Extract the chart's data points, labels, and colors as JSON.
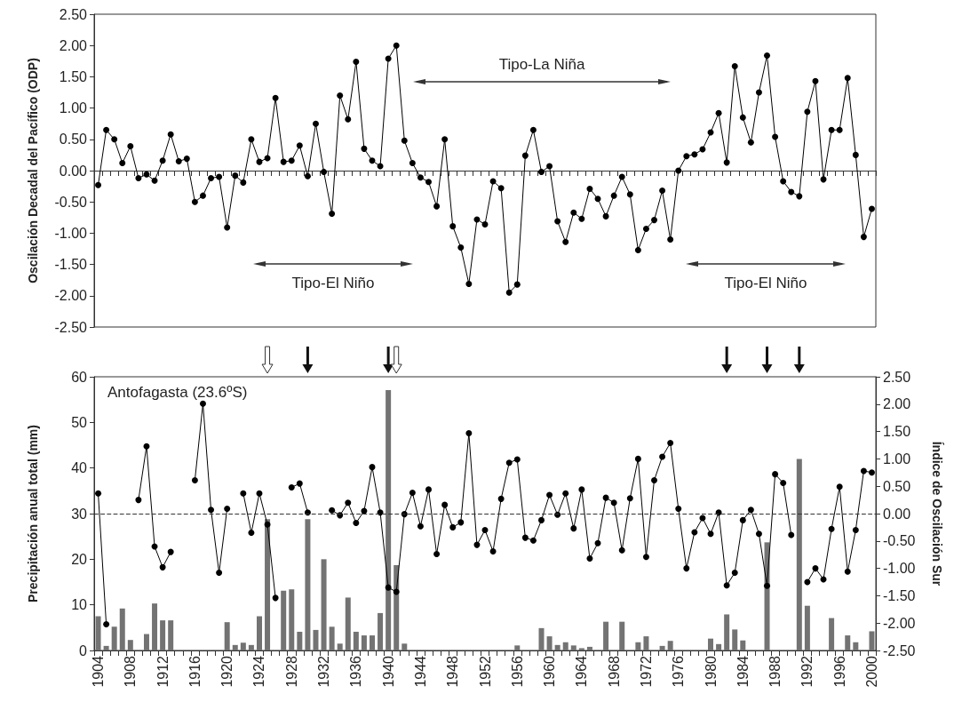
{
  "chart_data": [
    {
      "type": "line",
      "ylabel": "Oscilación Decadal del Pacífico (ODP)",
      "tick_labels": "y",
      "marker": "circle",
      "line_style": "solid",
      "categories": [
        null,
        null,
        null,
        null,
        null,
        null,
        null,
        null,
        null,
        null,
        null,
        null,
        null,
        null,
        null,
        null,
        null,
        null,
        null,
        null,
        null,
        null,
        null,
        null,
        null,
        null,
        null,
        null,
        null,
        null,
        null,
        null,
        null,
        null,
        null,
        null,
        null,
        null,
        null,
        null,
        null,
        null,
        null,
        null,
        null,
        null,
        null,
        null,
        null,
        null,
        null,
        null,
        null,
        null,
        null,
        null,
        null,
        null,
        null,
        null,
        null,
        null,
        null,
        null,
        null,
        null,
        null,
        null,
        null,
        null,
        null,
        null,
        null,
        null,
        null,
        null,
        null,
        null,
        null,
        null,
        null,
        null,
        null,
        null,
        null,
        null,
        null,
        null,
        null,
        null,
        null,
        null,
        null,
        null,
        null,
        null,
        null
      ],
      "ylim": [
        -2.5,
        2.5
      ],
      "yticks": [
        {
          "value": -2.5,
          "label": "-2.50"
        },
        {
          "value": -2,
          "label": "-2.00"
        },
        {
          "value": -1.5,
          "label": "-1.50"
        },
        {
          "value": -1,
          "label": "-1.00"
        },
        {
          "value": -0.5,
          "label": "-0.50"
        },
        {
          "value": 0,
          "label": "0.00"
        },
        {
          "value": 0.5,
          "label": "0.50"
        },
        {
          "value": 1,
          "label": "1.00"
        },
        {
          "value": 1.5,
          "label": "1.50"
        },
        {
          "value": 2,
          "label": "2.00"
        },
        {
          "value": 2.5,
          "label": "2.50"
        }
      ],
      "annotations": [
        "Tipo-La Niña",
        "Tipo-El Niño",
        "Tipo-El Niño"
      ],
      "series": [
        {
          "color": "#000000",
          "values": [
            -0.23,
            0.65,
            0.5,
            0.12,
            0.39,
            -0.12,
            -0.06,
            -0.16,
            0.16,
            0.58,
            0.15,
            0.19,
            -0.5,
            -0.4,
            -0.12,
            -0.1,
            -0.91,
            -0.08,
            -0.19,
            0.5,
            0.14,
            0.2,
            1.16,
            0.14,
            0.16,
            0.4,
            -0.09,
            0.75,
            -0.02,
            -0.69,
            1.2,
            0.82,
            1.74,
            0.35,
            0.16,
            0.07,
            1.79,
            2.0,
            0.48,
            0.12,
            -0.11,
            -0.18,
            -0.57,
            0.5,
            -0.89,
            -1.23,
            -1.81,
            -0.78,
            -0.86,
            -0.17,
            -0.28,
            -1.95,
            -1.82,
            0.24,
            0.65,
            -0.02,
            0.07,
            -0.81,
            -1.14,
            -0.67,
            -0.77,
            -0.29,
            -0.45,
            -0.73,
            -0.4,
            -0.1,
            -0.38,
            -1.27,
            -0.93,
            -0.79,
            -0.32,
            -1.1,
            0.0,
            0.23,
            0.26,
            0.34,
            0.61,
            0.92,
            0.13,
            1.67,
            0.85,
            0.45,
            1.25,
            1.84,
            0.54,
            -0.17,
            -0.34,
            -0.41,
            0.94,
            1.43,
            -0.14,
            0.65,
            0.65,
            1.48,
            0.25,
            -1.06,
            -0.61
          ]
        }
      ]
    },
    {
      "type": "bar",
      "title": "Antofagasta (23.6ºS)",
      "ylabel": "Precipitación anual total (mm)",
      "y2label": "Índice de Oscilación Sur",
      "marker": "circle",
      "line_style": "solid",
      "categories": [
        "1904",
        null,
        null,
        null,
        "1908",
        null,
        null,
        null,
        "1912",
        null,
        null,
        null,
        "1916",
        null,
        null,
        null,
        "1920",
        null,
        null,
        null,
        "1924",
        null,
        null,
        null,
        "1928",
        null,
        null,
        null,
        "1932",
        null,
        null,
        null,
        "1936",
        null,
        null,
        null,
        "1940",
        null,
        null,
        null,
        "1944",
        null,
        null,
        null,
        "1948",
        null,
        null,
        null,
        "1952",
        null,
        null,
        null,
        "1956",
        null,
        null,
        null,
        "1960",
        null,
        null,
        null,
        "1964",
        null,
        null,
        null,
        "1968",
        null,
        null,
        null,
        "1972",
        null,
        null,
        null,
        "1976",
        null,
        null,
        null,
        "1980",
        null,
        null,
        null,
        "1984",
        null,
        null,
        null,
        "1988",
        null,
        null,
        null,
        "1992",
        null,
        null,
        null,
        "1996",
        null,
        null,
        null,
        "2000"
      ],
      "ylim": [
        0,
        60
      ],
      "yticks": [
        0,
        10,
        20,
        30,
        40,
        50,
        60
      ],
      "y2lim": [
        -2.5,
        2.5
      ],
      "y2ticks": [
        {
          "value": -2.5,
          "label": "-2.50"
        },
        {
          "value": -2,
          "label": "-2.00"
        },
        {
          "value": -1.5,
          "label": "-1.50"
        },
        {
          "value": -1,
          "label": "-1.00"
        },
        {
          "value": -0.5,
          "label": "-0.50"
        },
        {
          "value": 0,
          "label": "0.00"
        },
        {
          "value": 0.5,
          "label": "0.50"
        },
        {
          "value": 1,
          "label": "1.00"
        },
        {
          "value": 1.5,
          "label": "1.50"
        },
        {
          "value": 2,
          "label": "2.00"
        },
        {
          "value": 2.5,
          "label": "2.50"
        }
      ],
      "ref_lines": [
        {
          "axis": "y2",
          "value": 0,
          "line_style": "dashed",
          "color": "#333333"
        }
      ],
      "series": [
        {
          "color": "#737373",
          "values": [
            7.5,
            1.0,
            5.2,
            9.2,
            2.3,
            0,
            3.6,
            10.3,
            6.6,
            6.6,
            0,
            0,
            0,
            0,
            0,
            0,
            6.2,
            1.2,
            1.7,
            1.2,
            7.5,
            28.8,
            0,
            13.1,
            13.4,
            4.1,
            28.8,
            4.5,
            20.0,
            5.2,
            1.5,
            11.6,
            4.1,
            3.3,
            3.3,
            8.2,
            57.1,
            18.7,
            1.5,
            0,
            0,
            0,
            0,
            0,
            0,
            0,
            0,
            0,
            0,
            0,
            0,
            0,
            1.1,
            0,
            0,
            4.9,
            3.1,
            1.2,
            1.8,
            1.1,
            0.5,
            0.8,
            0,
            6.3,
            0,
            6.3,
            0,
            1.8,
            3.1,
            0,
            1.0,
            2.1,
            0,
            0,
            0,
            0,
            2.6,
            1.4,
            7.9,
            4.6,
            2.2,
            0,
            0,
            23.7,
            0,
            0,
            0,
            42.0,
            9.8,
            0,
            0,
            7.1,
            0,
            3.3,
            1.8,
            0,
            4.2
          ]
        },
        {
          "type": "line",
          "axis": "y2",
          "color": "#000000",
          "values": [
            0.37,
            -2.02,
            null,
            null,
            null,
            0.25,
            1.23,
            -0.6,
            -0.98,
            -0.7,
            null,
            null,
            0.61,
            2.01,
            0.07,
            -1.08,
            0.09,
            null,
            0.37,
            -0.35,
            0.37,
            -0.2,
            -1.54,
            null,
            0.48,
            0.55,
            0.02,
            null,
            null,
            0.06,
            -0.03,
            0.2,
            -0.17,
            0.05,
            0.85,
            0.02,
            -1.35,
            -1.43,
            -0.01,
            0.38,
            -0.23,
            0.44,
            -0.74,
            0.16,
            -0.25,
            -0.16,
            1.47,
            -0.57,
            -0.3,
            -0.69,
            0.27,
            0.93,
            0.99,
            -0.44,
            -0.49,
            -0.12,
            0.34,
            -0.02,
            0.37,
            -0.27,
            0.44,
            -0.82,
            -0.54,
            0.29,
            0.2,
            -0.67,
            0.28,
            1.0,
            -0.79,
            0.61,
            1.04,
            1.29,
            0.09,
            -1.0,
            -0.34,
            -0.08,
            -0.37,
            0.02,
            -1.31,
            -1.08,
            -0.12,
            0.07,
            -0.37,
            -1.32,
            0.72,
            0.56,
            -0.39,
            null,
            -1.25,
            -1.0,
            -1.2,
            -0.28,
            0.49,
            -1.06,
            -0.3,
            0.78,
            0.75
          ]
        }
      ]
    }
  ]
}
